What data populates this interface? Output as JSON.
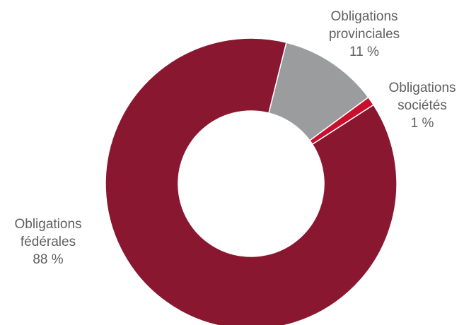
{
  "chart_data": {
    "type": "pie",
    "donut": true,
    "slices": [
      {
        "name_lines": [
          "Obligations",
          "provinciales"
        ],
        "value": 11,
        "value_label": "11 %",
        "color": "#9b9c9e"
      },
      {
        "name_lines": [
          "Obligations",
          "sociétés"
        ],
        "value": 1,
        "value_label": "1 %",
        "color": "#c8102e"
      },
      {
        "name_lines": [
          "Obligations",
          "fédérales"
        ],
        "value": 88,
        "value_label": "88 %",
        "color": "#8a1730"
      }
    ]
  }
}
